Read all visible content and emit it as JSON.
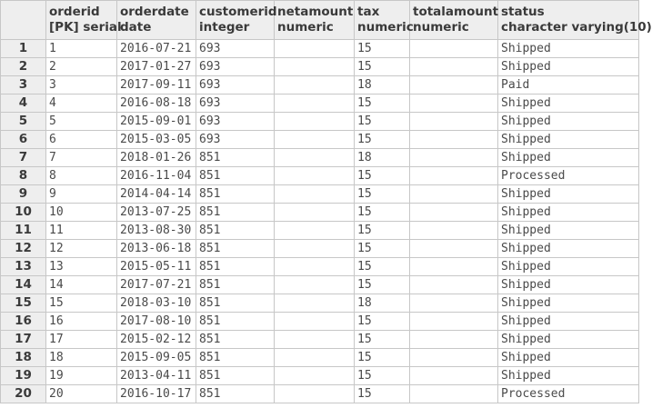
{
  "columns": [
    {
      "name": "orderid",
      "type": "[PK] serial"
    },
    {
      "name": "orderdate",
      "type": "date"
    },
    {
      "name": "customerid",
      "type": "integer"
    },
    {
      "name": "netamount",
      "type": "numeric"
    },
    {
      "name": "tax",
      "type": "numeric"
    },
    {
      "name": "totalamount",
      "type": "numeric"
    },
    {
      "name": "status",
      "type": "character varying(10)"
    }
  ],
  "rows": [
    {
      "num": "1",
      "cells": [
        "1",
        "2016-07-21",
        "693",
        "",
        "15",
        "",
        "Shipped"
      ]
    },
    {
      "num": "2",
      "cells": [
        "2",
        "2017-01-27",
        "693",
        "",
        "15",
        "",
        "Shipped"
      ]
    },
    {
      "num": "3",
      "cells": [
        "3",
        "2017-09-11",
        "693",
        "",
        "18",
        "",
        "Paid"
      ]
    },
    {
      "num": "4",
      "cells": [
        "4",
        "2016-08-18",
        "693",
        "",
        "15",
        "",
        "Shipped"
      ]
    },
    {
      "num": "5",
      "cells": [
        "5",
        "2015-09-01",
        "693",
        "",
        "15",
        "",
        "Shipped"
      ]
    },
    {
      "num": "6",
      "cells": [
        "6",
        "2015-03-05",
        "693",
        "",
        "15",
        "",
        "Shipped"
      ]
    },
    {
      "num": "7",
      "cells": [
        "7",
        "2018-01-26",
        "851",
        "",
        "18",
        "",
        "Shipped"
      ]
    },
    {
      "num": "8",
      "cells": [
        "8",
        "2016-11-04",
        "851",
        "",
        "15",
        "",
        "Processed"
      ]
    },
    {
      "num": "9",
      "cells": [
        "9",
        "2014-04-14",
        "851",
        "",
        "15",
        "",
        "Shipped"
      ]
    },
    {
      "num": "10",
      "cells": [
        "10",
        "2013-07-25",
        "851",
        "",
        "15",
        "",
        "Shipped"
      ]
    },
    {
      "num": "11",
      "cells": [
        "11",
        "2013-08-30",
        "851",
        "",
        "15",
        "",
        "Shipped"
      ]
    },
    {
      "num": "12",
      "cells": [
        "12",
        "2013-06-18",
        "851",
        "",
        "15",
        "",
        "Shipped"
      ]
    },
    {
      "num": "13",
      "cells": [
        "13",
        "2015-05-11",
        "851",
        "",
        "15",
        "",
        "Shipped"
      ]
    },
    {
      "num": "14",
      "cells": [
        "14",
        "2017-07-21",
        "851",
        "",
        "15",
        "",
        "Shipped"
      ]
    },
    {
      "num": "15",
      "cells": [
        "15",
        "2018-03-10",
        "851",
        "",
        "18",
        "",
        "Shipped"
      ]
    },
    {
      "num": "16",
      "cells": [
        "16",
        "2017-08-10",
        "851",
        "",
        "15",
        "",
        "Shipped"
      ]
    },
    {
      "num": "17",
      "cells": [
        "17",
        "2015-02-12",
        "851",
        "",
        "15",
        "",
        "Shipped"
      ]
    },
    {
      "num": "18",
      "cells": [
        "18",
        "2015-09-05",
        "851",
        "",
        "15",
        "",
        "Shipped"
      ]
    },
    {
      "num": "19",
      "cells": [
        "19",
        "2013-04-11",
        "851",
        "",
        "15",
        "",
        "Shipped"
      ]
    },
    {
      "num": "20",
      "cells": [
        "20",
        "2016-10-17",
        "851",
        "",
        "15",
        "",
        "Processed"
      ]
    }
  ]
}
